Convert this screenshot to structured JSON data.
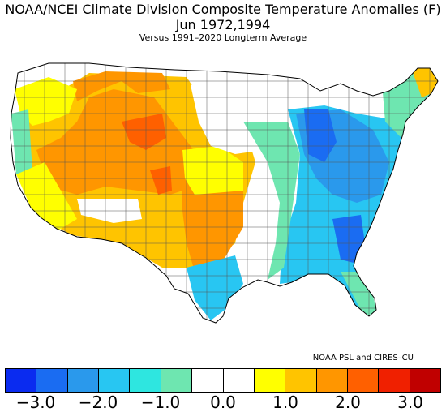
{
  "title": {
    "line1": "NOAA/NCEI Climate Division Composite Temperature Anomalies (F)",
    "line2": "Jun   1972,1994",
    "line3": "Versus 1991–2020 Longterm Average"
  },
  "credit": "NOAA PSL and CIRES–CU",
  "colorbar": {
    "colors": [
      "#0a2bf0",
      "#1a6cf2",
      "#2a99ec",
      "#28c6f2",
      "#2ee6e0",
      "#6ee6b0",
      "#ffffff",
      "#ffffff",
      "#ffff00",
      "#ffc400",
      "#ff9600",
      "#ff6000",
      "#f02000",
      "#c00000"
    ],
    "ticks": [
      "−3.0",
      "−2.0",
      "−1.0",
      "0.0",
      "1.0",
      "2.0",
      "3.0"
    ]
  },
  "map": {
    "regions": [
      {
        "name": "pacific-northwest",
        "color": "#ffff00"
      },
      {
        "name": "oregon-coast",
        "color": "#6ee6b0"
      },
      {
        "name": "great-basin",
        "color": "#ff9600"
      },
      {
        "name": "california-inland",
        "color": "#ffff00"
      },
      {
        "name": "colorado-hotspot",
        "color": "#ff6000"
      },
      {
        "name": "southern-plains",
        "color": "#ff9600"
      },
      {
        "name": "central-plains",
        "color": "#ffc400"
      },
      {
        "name": "upper-midwest",
        "color": "#ffffff"
      },
      {
        "name": "mississippi-valley",
        "color": "#6ee6b0"
      },
      {
        "name": "great-lakes",
        "color": "#1a6cf2"
      },
      {
        "name": "ohio-valley",
        "color": "#2a99ec"
      },
      {
        "name": "southeast",
        "color": "#28c6f2"
      },
      {
        "name": "florida",
        "color": "#6ee6b0"
      },
      {
        "name": "texas-coast",
        "color": "#28c6f2"
      },
      {
        "name": "new-england",
        "color": "#6ee6b0"
      },
      {
        "name": "maine",
        "color": "#ffc400"
      }
    ]
  }
}
